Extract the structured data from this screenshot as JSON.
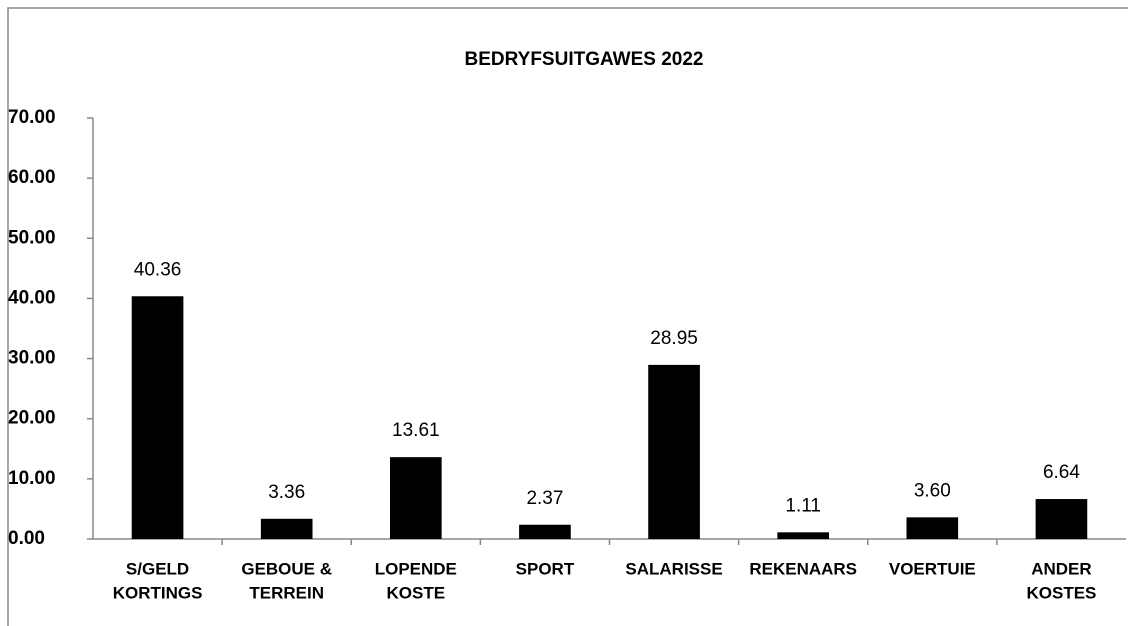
{
  "chart_data": {
    "type": "bar",
    "title": "BEDRYFSUITGAWES 2022",
    "categories": [
      [
        "S/GELD",
        "KORTINGS"
      ],
      [
        "GEBOUE &",
        "TERREIN"
      ],
      [
        "LOPENDE",
        "KOSTE"
      ],
      [
        "SPORT"
      ],
      [
        "SALARISSE"
      ],
      [
        "REKENAARS"
      ],
      [
        "VOERTUIE"
      ],
      [
        "ANDER",
        "KOSTES"
      ]
    ],
    "values": [
      40.36,
      3.36,
      13.61,
      2.37,
      28.95,
      1.11,
      3.6,
      6.64
    ],
    "value_labels": [
      "40.36",
      "3.36",
      "13.61",
      "2.37",
      "28.95",
      "1.11",
      "3.60",
      "6.64"
    ],
    "color": "#000000",
    "ylim": [
      0,
      70
    ],
    "yticks": [
      {
        "value": 0,
        "label": "0.00"
      },
      {
        "value": 10,
        "label": "10.00"
      },
      {
        "value": 20,
        "label": "20.00"
      },
      {
        "value": 30,
        "label": "30.00"
      },
      {
        "value": 40,
        "label": "40.00"
      },
      {
        "value": 50,
        "label": "50.00"
      },
      {
        "value": 60,
        "label": "60.00"
      },
      {
        "value": 70,
        "label": "70.00"
      }
    ],
    "grid": false
  }
}
